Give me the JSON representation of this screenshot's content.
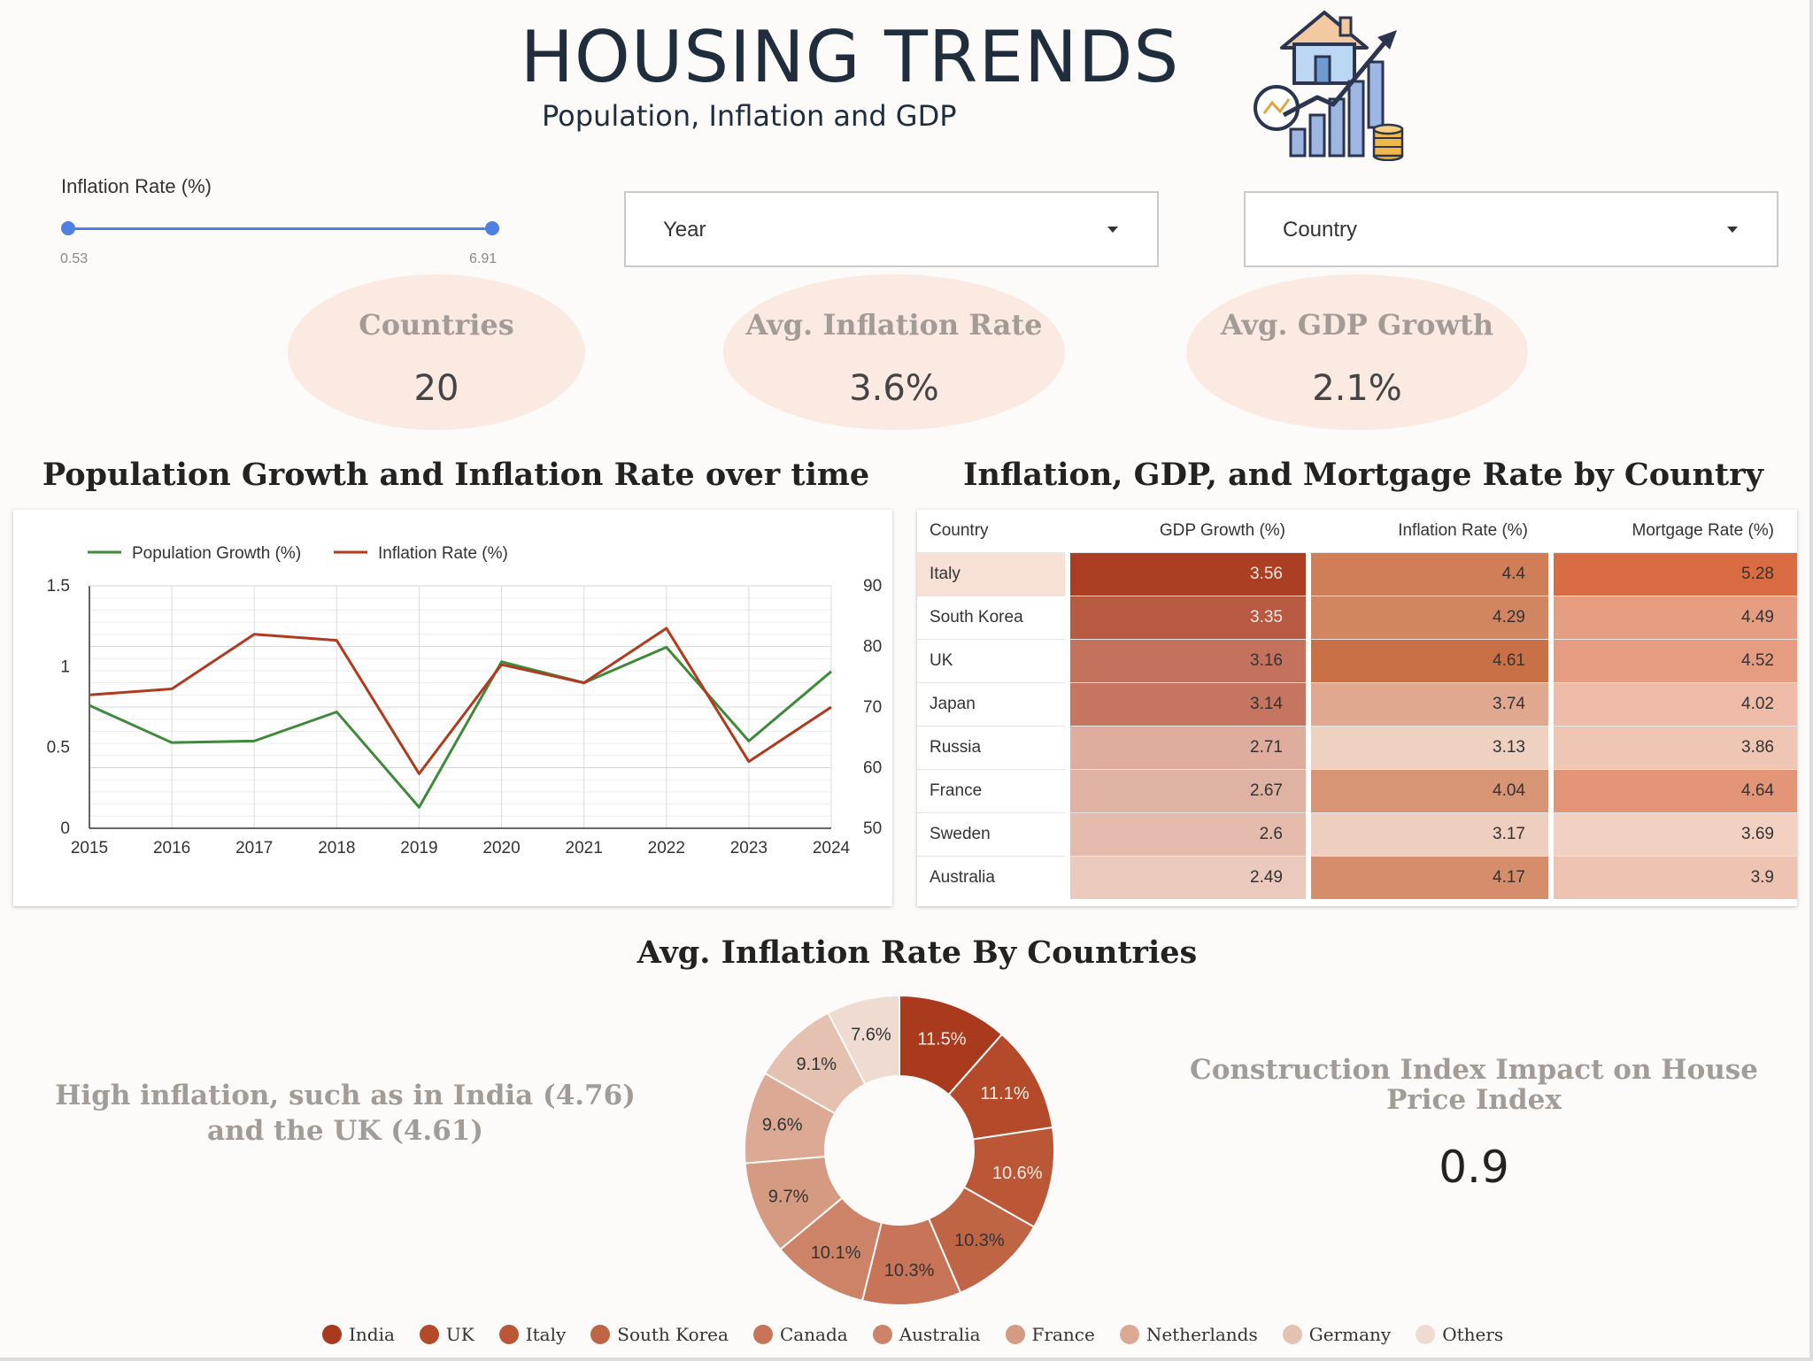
{
  "header": {
    "title": "HOUSING TRENDS",
    "subtitle": "Population, Inflation and GDP"
  },
  "filters": {
    "slider_label": "Inflation Rate (%)",
    "slider_min": "0.53",
    "slider_max": "6.91",
    "year_label": "Year",
    "country_label": "Country"
  },
  "kpis": [
    {
      "label": "Countries",
      "value": "20"
    },
    {
      "label": "Avg. Inflation Rate",
      "value": "3.6%"
    },
    {
      "label": "Avg. GDP Growth",
      "value": "2.1%"
    }
  ],
  "line_chart": {
    "title": "Population Growth and Inflation Rate over time"
  },
  "table": {
    "title": "Inflation, GDP, and Mortgage Rate by Country"
  },
  "donut": {
    "title": "Avg. Inflation Rate By Countries"
  },
  "notes": {
    "left": "High inflation, such as in India (4.76) and the UK (4.61)",
    "right_label": "Construction Index Impact on House Price Index",
    "right_value": "0.9"
  },
  "colors": {
    "population": "#3f8a3a",
    "inflation": "#b03a1e",
    "accent_blue": "#4f7fe0"
  },
  "chart_data": [
    {
      "type": "line",
      "title": "Population Growth and Inflation Rate over time",
      "x": [
        2015,
        2016,
        2017,
        2018,
        2019,
        2020,
        2021,
        2022,
        2023,
        2024
      ],
      "series": [
        {
          "name": "Population Growth (%)",
          "axis": "left",
          "values": [
            0.76,
            0.53,
            0.54,
            0.72,
            0.13,
            1.03,
            0.9,
            1.12,
            0.54,
            0.97
          ]
        },
        {
          "name": "Inflation Rate (%)",
          "axis": "right",
          "values": [
            72,
            73,
            82,
            81,
            59,
            77,
            74,
            83,
            61,
            70
          ]
        }
      ],
      "ylim_left": [
        0,
        1.5
      ],
      "yticks_left": [
        "0",
        "0.5",
        "1",
        "1.5"
      ],
      "ylim_right": [
        50,
        90
      ],
      "yticks_right": [
        "50",
        "60",
        "70",
        "80",
        "90"
      ],
      "legend": "top-left",
      "grid": true
    },
    {
      "type": "table",
      "title": "Inflation, GDP, and Mortgage Rate by Country",
      "columns": [
        "Country",
        "GDP Growth (%)",
        "Inflation Rate (%)",
        "Mortgage Rate (%)"
      ],
      "rows": [
        [
          "Italy",
          3.56,
          4.4,
          5.28
        ],
        [
          "South Korea",
          3.35,
          4.29,
          4.49
        ],
        [
          "UK",
          3.16,
          4.61,
          4.52
        ],
        [
          "Japan",
          3.14,
          3.74,
          4.02
        ],
        [
          "Russia",
          2.71,
          3.13,
          3.86
        ],
        [
          "France",
          2.67,
          4.04,
          4.64
        ],
        [
          "Sweden",
          2.6,
          3.17,
          3.69
        ],
        [
          "Australia",
          2.49,
          4.17,
          3.9
        ]
      ]
    },
    {
      "type": "pie",
      "title": "Avg. Inflation Rate By Countries",
      "labels": [
        "India",
        "UK",
        "Italy",
        "South Korea",
        "Canada",
        "Australia",
        "France",
        "Netherlands",
        "Germany",
        "Others"
      ],
      "values": [
        11.5,
        11.1,
        10.6,
        10.3,
        10.3,
        10.1,
        9.7,
        9.6,
        9.1,
        7.6
      ],
      "value_labels": [
        "11.5%",
        "11.1%",
        "10.6%",
        "10.3%",
        "10.3%",
        "10.1%",
        "9.7%",
        "9.6%",
        "9.1%",
        "7.6%"
      ],
      "colors": [
        "#a93a1d",
        "#b44a2a",
        "#bb5637",
        "#c06446",
        "#c77459",
        "#cd8368",
        "#d49a82",
        "#dca995",
        "#e4c1b1",
        "#efdbd1"
      ],
      "legend": "bottom"
    }
  ]
}
